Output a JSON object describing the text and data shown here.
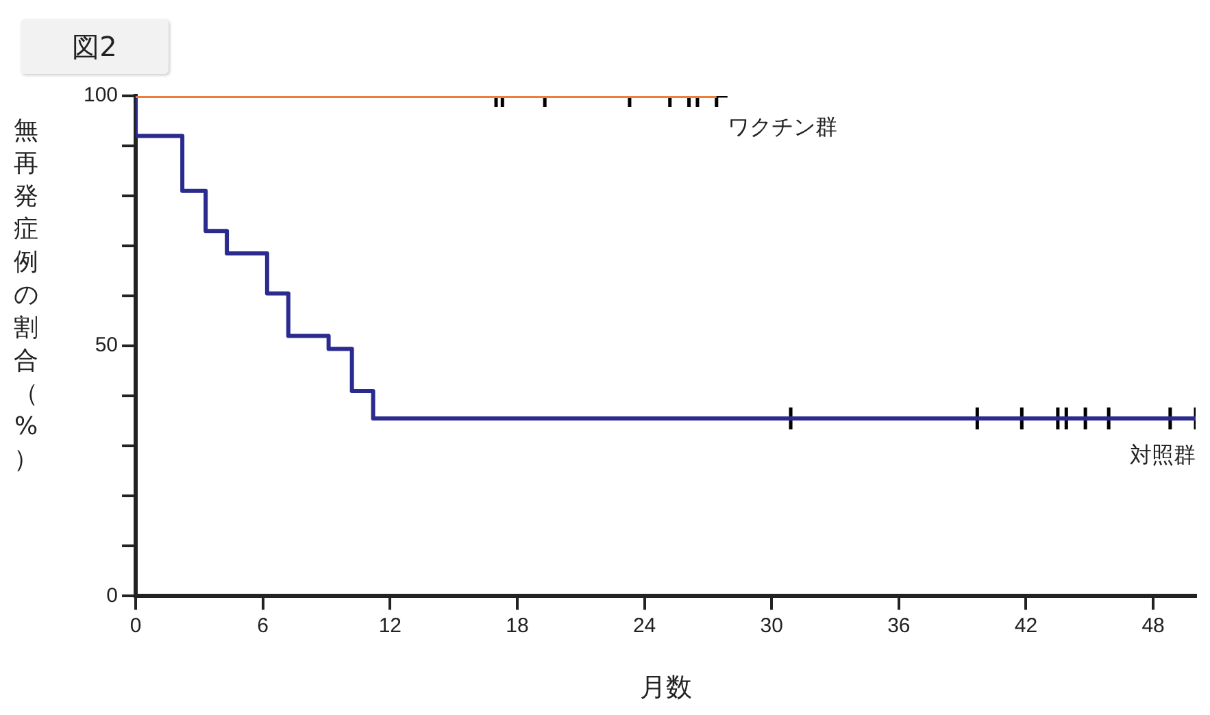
{
  "chart_data": {
    "type": "step",
    "title": "図2",
    "xlabel": "月数",
    "ylabel": "無再発症例の割合（%）",
    "xlim": [
      0,
      50
    ],
    "xticks": [
      0,
      6,
      12,
      18,
      24,
      30,
      36,
      42,
      48
    ],
    "ylim": [
      0,
      100
    ],
    "yticks": [
      0,
      {
        "value": 10,
        "label": null
      },
      {
        "value": 20,
        "label": null
      },
      {
        "value": 30,
        "label": null
      },
      {
        "value": 40,
        "label": null
      },
      50,
      {
        "value": 60,
        "label": null
      },
      {
        "value": 70,
        "label": null
      },
      {
        "value": 80,
        "label": null
      },
      {
        "value": 90,
        "label": null
      },
      100
    ],
    "grid": false,
    "marker": "none",
    "series": [
      {
        "name": "ワクチン群",
        "color": "#f07c3c",
        "x": [
          0,
          27.4
        ],
        "values": [
          100,
          100
        ]
      },
      {
        "name": "対照群",
        "color": "#2b2b8f",
        "x": [
          0,
          2.2,
          3.3,
          4.3,
          6.2,
          7.2,
          9.1,
          10.2,
          11.2,
          12.2,
          50
        ],
        "values": [
          100,
          92,
          81,
          73,
          68.5,
          60.5,
          52,
          49.4,
          41,
          35.5,
          35.5
        ]
      },
      {
        "type": "scatter",
        "color": "#000000",
        "marker": "cross",
        "x": [
          17,
          17.3,
          19.3,
          23.3,
          25.2,
          26.1,
          26.5,
          27.4
        ],
        "values": [
          100,
          100,
          100,
          100,
          100,
          100,
          100,
          100
        ]
      },
      {
        "type": "scatter",
        "color": "#000000",
        "marker": "cross",
        "x": [
          30.9,
          39.7,
          41.8,
          43.5,
          43.9,
          44.8,
          45.9,
          48.8,
          50
        ],
        "values": [
          35.5,
          35.5,
          35.5,
          35.5,
          35.5,
          35.5,
          35.5,
          35.5,
          35.5
        ]
      }
    ]
  }
}
